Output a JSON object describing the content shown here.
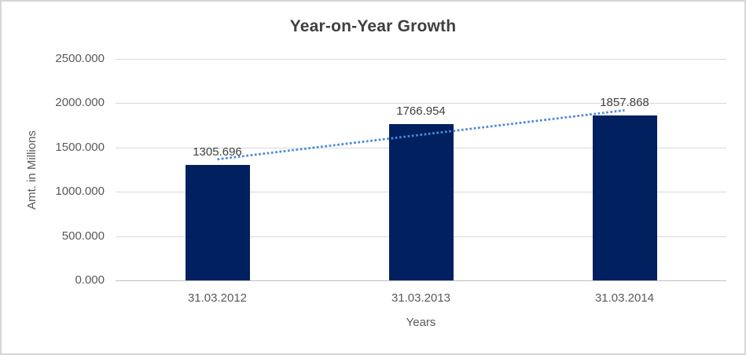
{
  "window": {
    "background": "#FFFFFF",
    "border_color": "#D6D6D6"
  },
  "chart_data": {
    "type": "bar",
    "title": "Year-on-Year Growth",
    "categories": [
      "31.03.2012",
      "31.03.2013",
      "31.03.2014"
    ],
    "values": [
      1305.696,
      1766.954,
      1857.868
    ],
    "data_labels": [
      "1305.696",
      "1766.954",
      "1857.868"
    ],
    "xlabel": "Years",
    "ylabel": "Amt. in Millions",
    "ylim": [
      0,
      2500
    ],
    "ytick_values": [
      0,
      500,
      1000,
      1500,
      2000,
      2500
    ],
    "ytick_labels": [
      "0.000",
      "500.000",
      "1000.000",
      "1500.000",
      "2000.000",
      "2500.000"
    ],
    "grid": true,
    "legend": "none",
    "trendline": {
      "type": "linear",
      "style": "dotted"
    },
    "colors": {
      "bar": "#002060",
      "trendline": "#4A8BD8",
      "gridline": "#D9D9D9",
      "axis_line": "#BFBFBF",
      "title_text": "#404040",
      "tick_text": "#595959",
      "axis_title_text": "#595959",
      "data_label_text": "#404040"
    }
  }
}
